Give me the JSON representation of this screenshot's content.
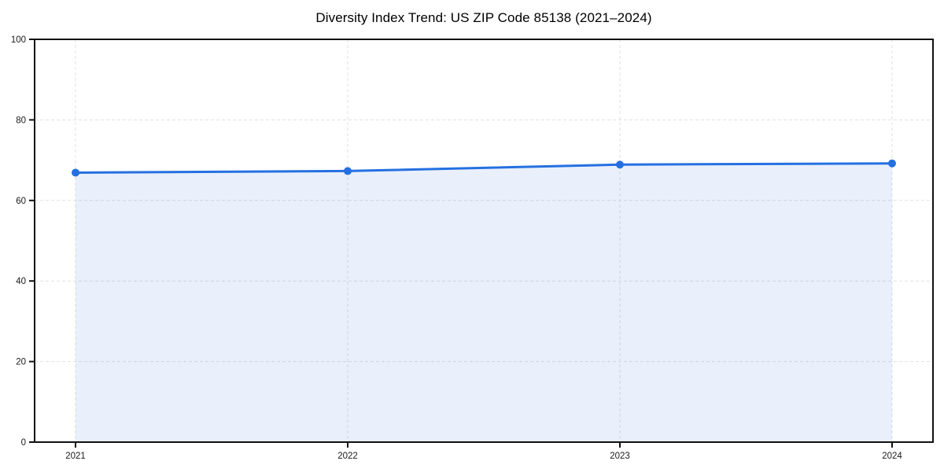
{
  "page": {
    "background": "#ffffff"
  },
  "chart_data": {
    "type": "line",
    "title": "Diversity Index Trend: US ZIP Code 85138 (2021–2024)",
    "x": [
      "2021",
      "2022",
      "2023",
      "2024"
    ],
    "series": [
      {
        "name": "Diversity Index",
        "values": [
          66.9,
          67.3,
          68.9,
          69.2
        ]
      }
    ],
    "xlabel": "",
    "ylabel": "",
    "ylim": [
      0,
      100
    ],
    "yticks": [
      0,
      20,
      40,
      60,
      80,
      100
    ],
    "grid": true,
    "grid_style": "dashed",
    "legend_position": "none",
    "area_fill": true,
    "marker": "circle",
    "colors": {
      "line": "#2570e0",
      "marker": "#2570e0",
      "area": "rgba(37, 112, 224, 0.10)",
      "grid": "#e0e0e0",
      "axis": "#111111",
      "tick_label": "#1a1a1a",
      "title": "#000000"
    }
  }
}
